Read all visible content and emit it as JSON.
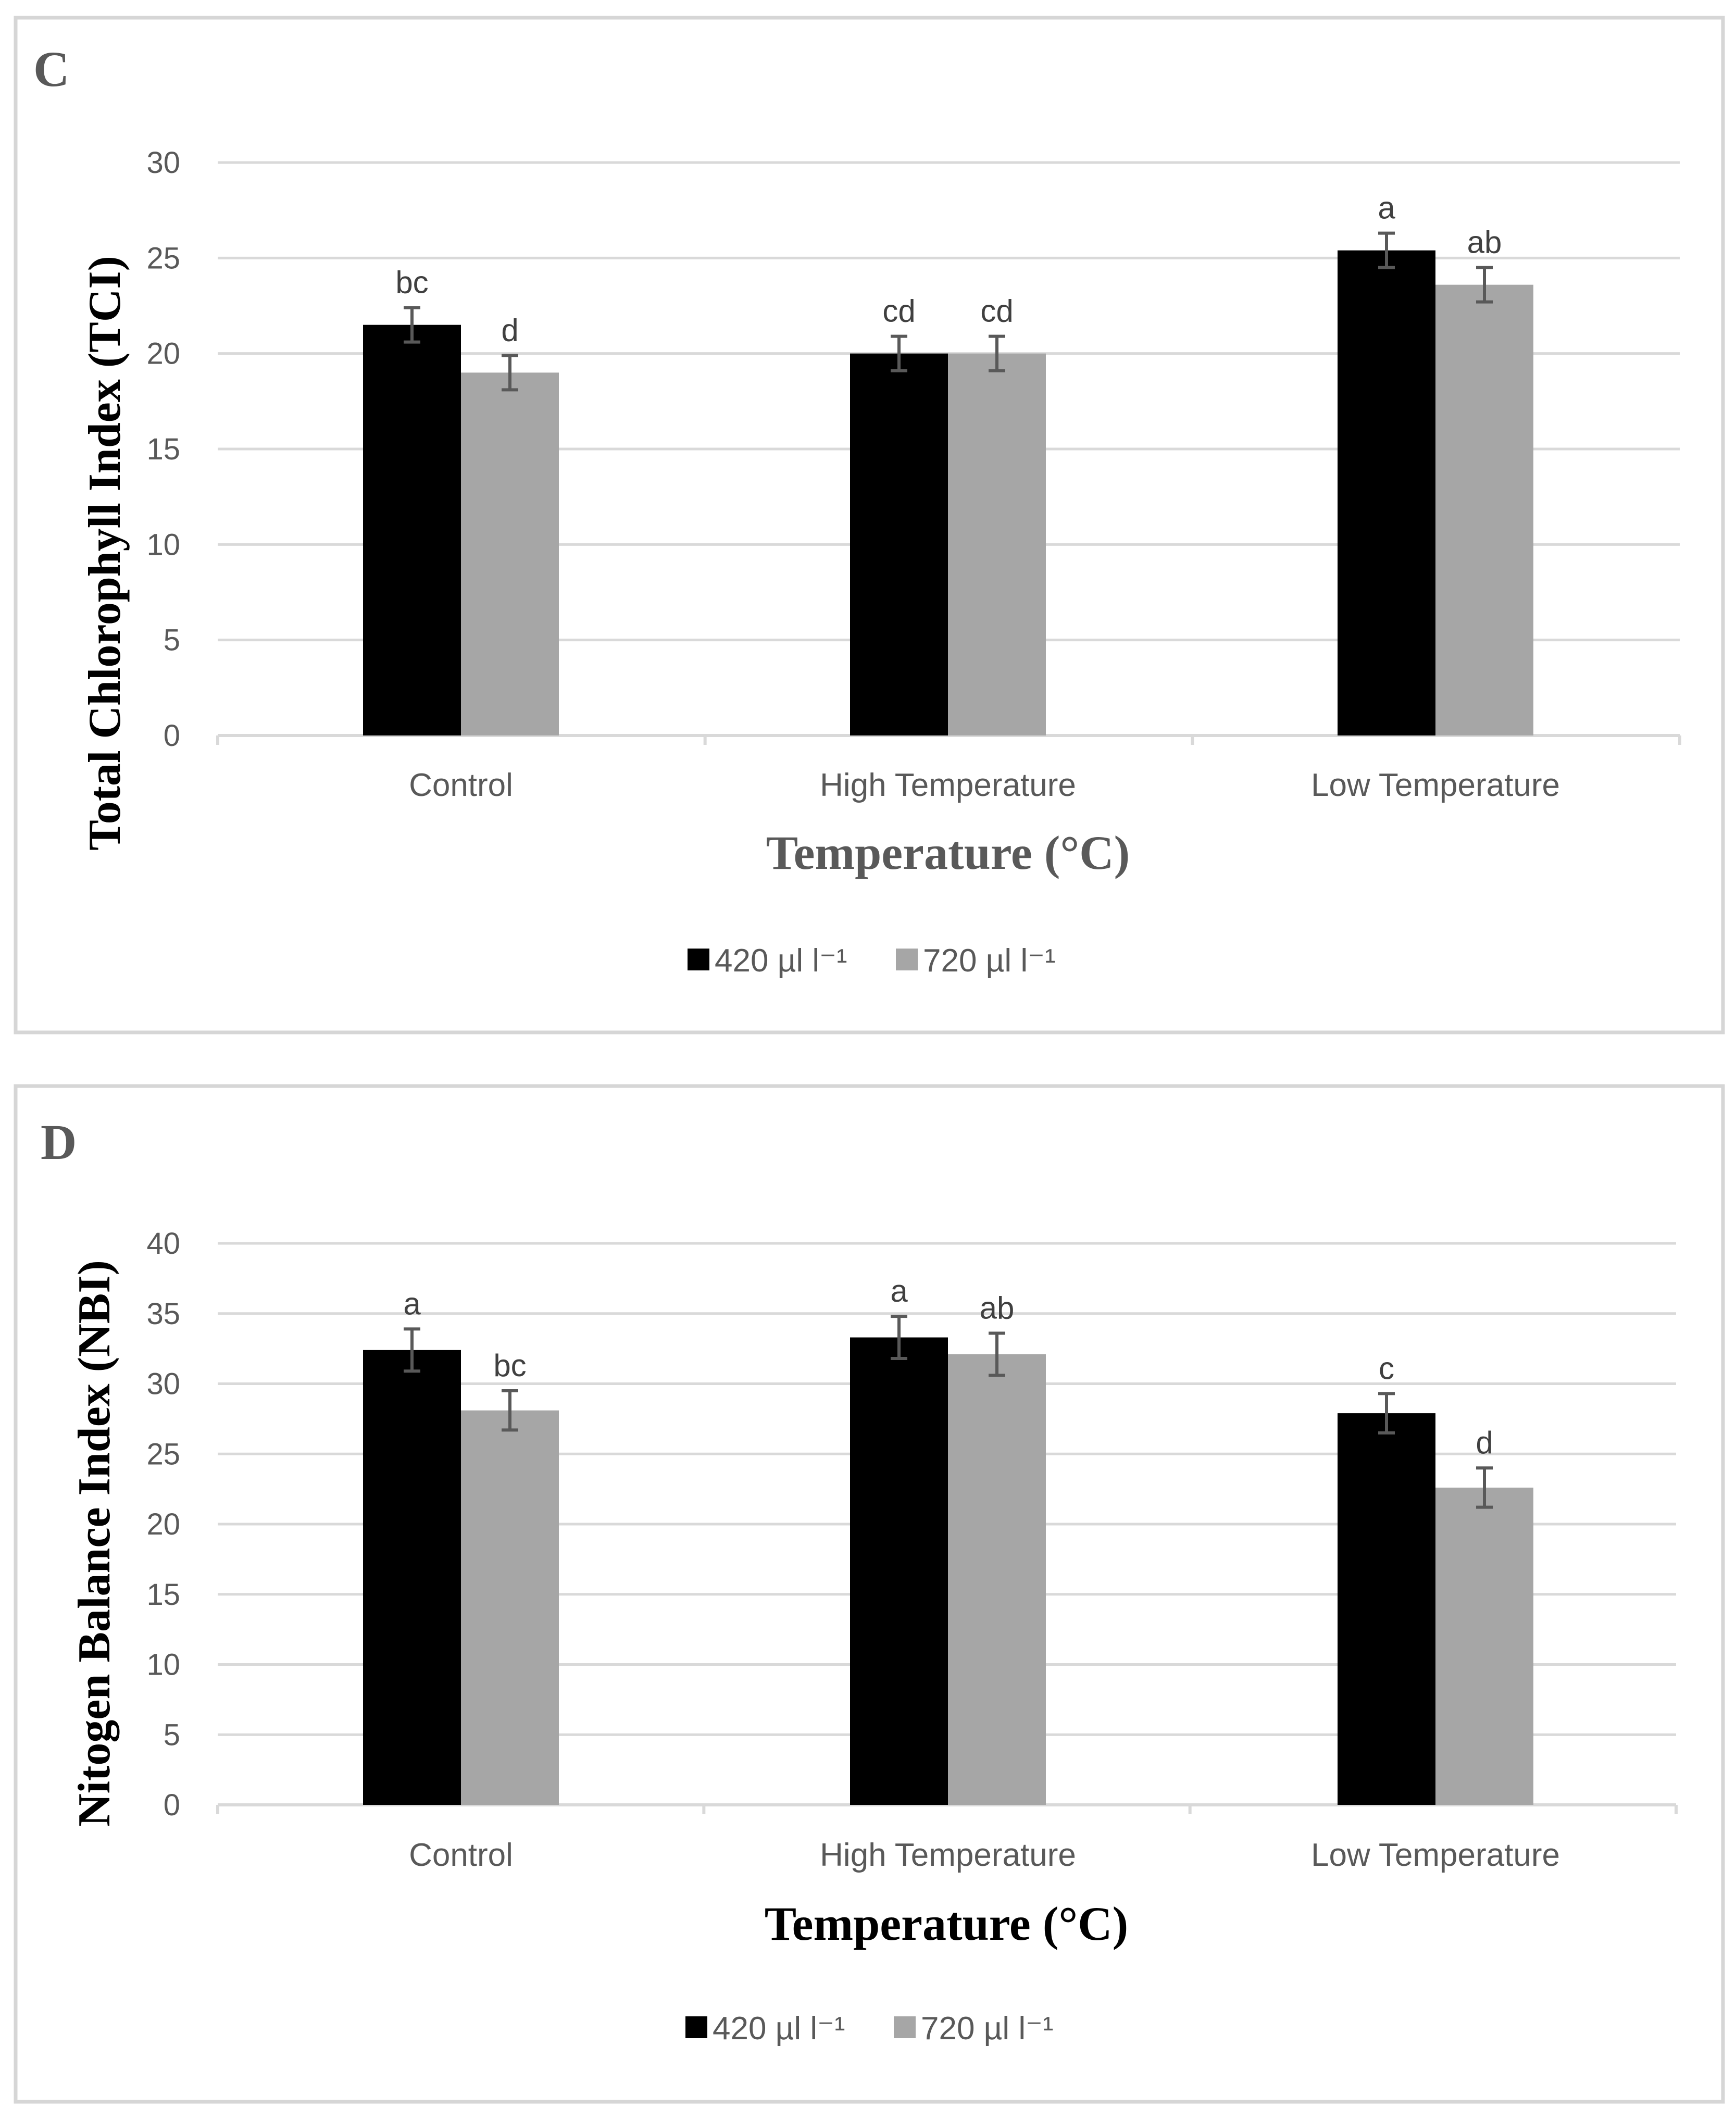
{
  "chart_data": [
    {
      "panel_letter": "C",
      "type": "bar",
      "ylabel": "Total Chlorophyll Index (TCI)",
      "xlabel": "Temperature (°C)",
      "categories": [
        "Control",
        "High Temperature",
        "Low Temperature"
      ],
      "ylim": [
        0,
        30
      ],
      "yticks": [
        0,
        5,
        10,
        15,
        20,
        25,
        30
      ],
      "grid": true,
      "legend_position": "bottom",
      "series": [
        {
          "name": "420 µl l⁻¹",
          "color": "#000000",
          "values": [
            21.5,
            20.0,
            25.4
          ],
          "errors": [
            0.9,
            0.9,
            0.9
          ],
          "labels": [
            "bc",
            "cd",
            "a"
          ]
        },
        {
          "name": "720 µl l⁻¹",
          "color": "#a6a6a6",
          "values": [
            19.0,
            20.0,
            23.6
          ],
          "errors": [
            0.9,
            0.9,
            0.9
          ],
          "labels": [
            "d",
            "cd",
            "ab"
          ]
        }
      ]
    },
    {
      "panel_letter": "D",
      "type": "bar",
      "ylabel": "Nitogen Balance Index (NBI)",
      "xlabel": "Temperature (°C)",
      "categories": [
        "Control",
        "High Temperature",
        "Low Temperature"
      ],
      "ylim": [
        0,
        40
      ],
      "yticks": [
        0,
        5,
        10,
        15,
        20,
        25,
        30,
        35,
        40
      ],
      "grid": true,
      "legend_position": "bottom",
      "series": [
        {
          "name": "420 µl l⁻¹",
          "color": "#000000",
          "values": [
            32.4,
            33.3,
            27.9
          ],
          "errors": [
            1.5,
            1.5,
            1.4
          ],
          "labels": [
            "a",
            "a",
            "c"
          ]
        },
        {
          "name": "720 µl l⁻¹",
          "color": "#a6a6a6",
          "values": [
            28.1,
            32.1,
            22.6
          ],
          "errors": [
            1.4,
            1.5,
            1.4
          ],
          "labels": [
            "bc",
            "ab",
            "d"
          ]
        }
      ]
    }
  ]
}
